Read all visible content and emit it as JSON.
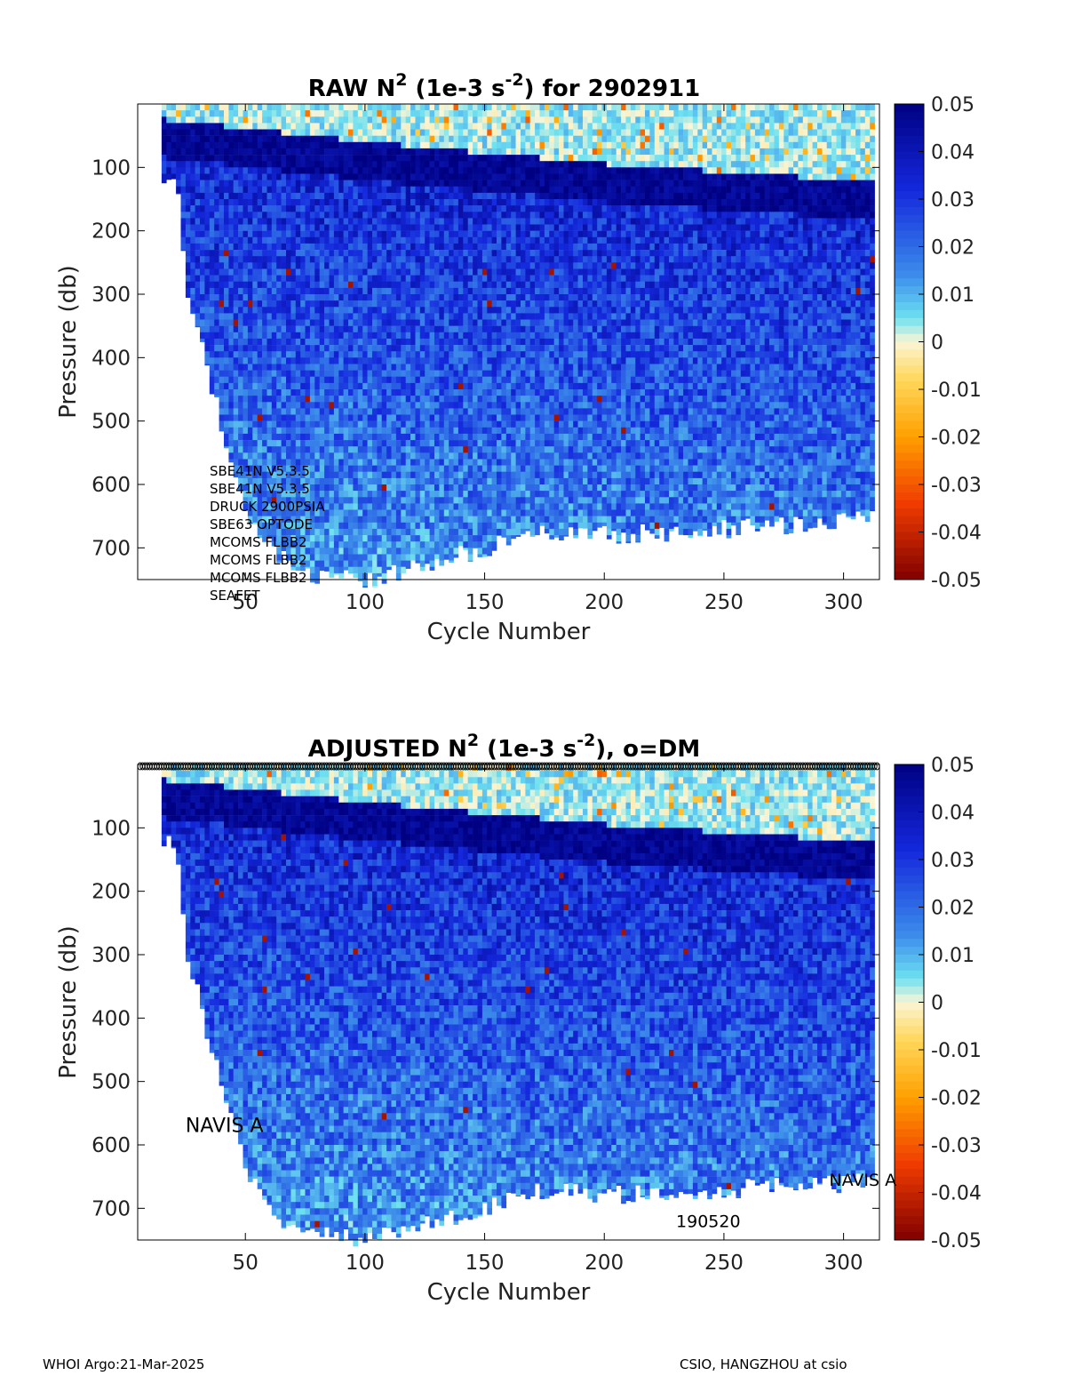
{
  "footer": {
    "left": "WHOI Argo:21-Mar-2025",
    "right": "CSIO, HANGZHOU at csio"
  },
  "chart_data": [
    {
      "type": "heatmap",
      "title": {
        "base": "RAW N",
        "sup1": "2",
        "mid": " (1e-3 s",
        "sup2": "-2",
        "end": ") for 2902911"
      },
      "xlabel": "Cycle Number",
      "ylabel": "Pressure (db)",
      "xlim": [
        5,
        315
      ],
      "ylim": [
        750,
        0
      ],
      "xticks": [
        50,
        100,
        150,
        200,
        250,
        300
      ],
      "yticks": [
        100,
        200,
        300,
        400,
        500,
        600,
        700
      ],
      "colorbar": {
        "range": [
          -0.05,
          0.05
        ],
        "ticks": [
          0.05,
          0.04,
          0.03,
          0.02,
          0.01,
          0,
          -0.01,
          -0.02,
          -0.03,
          -0.04,
          -0.05
        ],
        "tick_labels": [
          "0.05",
          "0.04",
          "0.03",
          "0.02",
          "0.01",
          "0",
          "-0.01",
          "-0.02",
          "-0.03",
          "-0.04",
          "-0.05"
        ],
        "colormap": "jet-reversed"
      },
      "data_extent": {
        "first_cycle": 15,
        "last_cycle": 311,
        "bottom_pressure": [
          [
            20,
            120
          ],
          [
            25,
            300
          ],
          [
            35,
            450
          ],
          [
            50,
            650
          ],
          [
            70,
            740
          ],
          [
            100,
            750
          ],
          [
            130,
            720
          ],
          [
            150,
            700
          ],
          [
            170,
            670
          ],
          [
            200,
            680
          ],
          [
            250,
            670
          ],
          [
            300,
            660
          ],
          [
            311,
            650
          ]
        ],
        "surface_layer_base": [
          [
            15,
            20
          ],
          [
            100,
            55
          ],
          [
            200,
            90
          ],
          [
            280,
            110
          ],
          [
            311,
            120
          ]
        ]
      },
      "annotations": [
        "SBE41N V5.3.5",
        "SBE41N V5.3.5",
        "DRUCK 2900PSIA",
        "SBE63 OPTODE",
        "MCOMS FLBB2",
        "MCOMS FLBB2",
        "MCOMS FLBB2",
        "SEAFET"
      ]
    },
    {
      "type": "heatmap",
      "title": {
        "base": "ADJUSTED N",
        "sup1": "2",
        "mid": " (1e-3 s",
        "sup2": "-2",
        "end": "), o=DM"
      },
      "xlabel": "Cycle Number",
      "ylabel": "Pressure (db)",
      "xlim": [
        5,
        315
      ],
      "ylim": [
        750,
        0
      ],
      "xticks": [
        50,
        100,
        150,
        200,
        250,
        300
      ],
      "yticks": [
        100,
        200,
        300,
        400,
        500,
        600,
        700
      ],
      "colorbar": {
        "range": [
          -0.05,
          0.05
        ],
        "ticks": [
          0.05,
          0.04,
          0.03,
          0.02,
          0.01,
          0,
          -0.01,
          -0.02,
          -0.03,
          -0.04,
          -0.05
        ],
        "tick_labels": [
          "0.05",
          "0.04",
          "0.03",
          "0.02",
          "0.01",
          "0",
          "-0.01",
          "-0.02",
          "-0.03",
          "-0.04",
          "-0.05"
        ],
        "colormap": "jet-reversed"
      },
      "dm_markers": {
        "first_cycle": 6,
        "last_cycle": 314,
        "pressure": 0
      },
      "data_extent": {
        "first_cycle": 15,
        "last_cycle": 311,
        "bottom_pressure": [
          [
            20,
            120
          ],
          [
            25,
            300
          ],
          [
            35,
            450
          ],
          [
            50,
            650
          ],
          [
            70,
            740
          ],
          [
            100,
            750
          ],
          [
            130,
            720
          ],
          [
            150,
            700
          ],
          [
            170,
            670
          ],
          [
            200,
            680
          ],
          [
            250,
            670
          ],
          [
            300,
            660
          ],
          [
            311,
            650
          ]
        ],
        "surface_layer_base": [
          [
            15,
            20
          ],
          [
            100,
            55
          ],
          [
            200,
            90
          ],
          [
            280,
            110
          ],
          [
            311,
            120
          ]
        ]
      },
      "annotations": [
        {
          "text": "NAVIS A",
          "x": 25,
          "y": 570
        },
        {
          "text": "NAVIS A",
          "x": 294,
          "y": 655
        },
        {
          "text": "190520",
          "x": 230,
          "y": 720
        }
      ]
    }
  ]
}
